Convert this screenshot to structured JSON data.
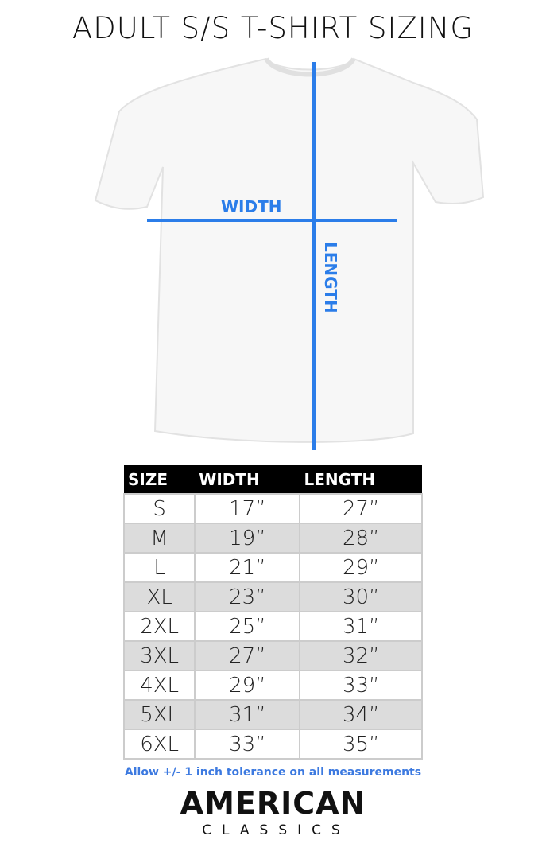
{
  "title": "ADULT S/S T-SHIRT SIZING",
  "diagram": {
    "width_label": "WIDTH",
    "length_label": "LENGTH",
    "line_color": "#2b7de9"
  },
  "table": {
    "headers": [
      "SIZE",
      "WIDTH",
      "LENGTH"
    ],
    "rows": [
      [
        "S",
        "17”",
        "27”"
      ],
      [
        "M",
        "19”",
        "28”"
      ],
      [
        "L",
        "21”",
        "29”"
      ],
      [
        "XL",
        "23”",
        "30”"
      ],
      [
        "2XL",
        "25”",
        "31”"
      ],
      [
        "3XL",
        "27”",
        "32”"
      ],
      [
        "4XL",
        "29”",
        "33”"
      ],
      [
        "5XL",
        "31”",
        "34”"
      ],
      [
        "6XL",
        "33”",
        "35”"
      ]
    ]
  },
  "note": "Allow +/- 1 inch tolerance on all measurements",
  "brand": {
    "line1": "AMERICAN",
    "line2": "CLASSICS"
  }
}
